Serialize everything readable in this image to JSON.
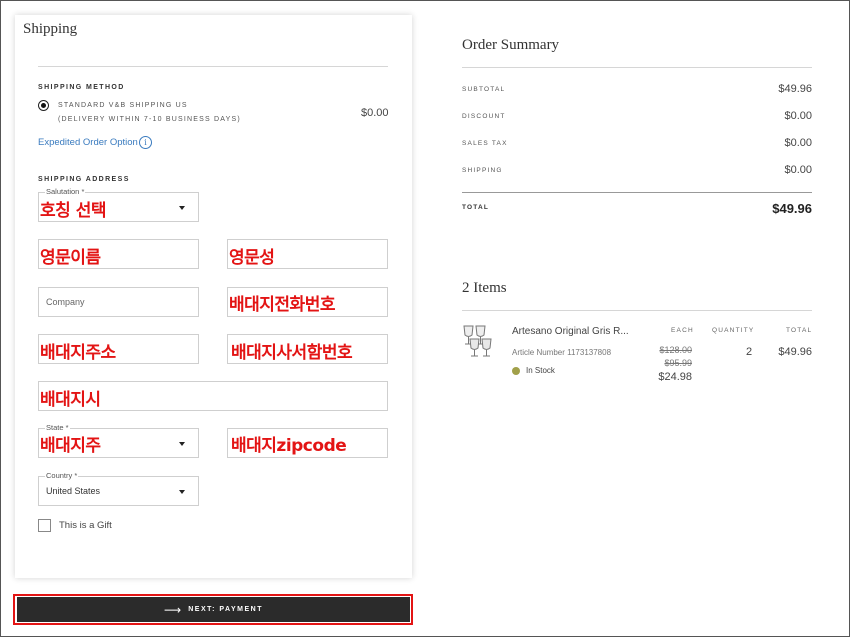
{
  "shipping": {
    "title": "Shipping",
    "method_heading": "SHIPPING METHOD",
    "method_name": "STANDARD V&B SHIPPING US",
    "method_delivery": "(DELIVERY WITHIN 7-10 BUSINESS DAYS)",
    "method_price": "$0.00",
    "expedited_link": "Expedited Order Option",
    "address_heading": "SHIPPING ADDRESS",
    "salutation_label": "Salutation *",
    "company_placeholder": "Company",
    "state_label": "State *",
    "country_label": "Country *",
    "country_value": "United States",
    "gift_label": "This is a Gift"
  },
  "annotations": {
    "salutation": "호칭 선택",
    "first_name": "영문이름",
    "last_name": "영문성",
    "phone": "배대지전화번호",
    "address": "배대지주소",
    "suite": "배대지사서함번호",
    "city": "배대지시",
    "state": "배대지주",
    "zip": "배대지zipcode"
  },
  "next_button": {
    "label": "NEXT: PAYMENT",
    "arrow": "⟶"
  },
  "summary": {
    "title": "Order Summary",
    "rows": [
      {
        "label": "SUBTOTAL",
        "value": "$49.96"
      },
      {
        "label": "DISCOUNT",
        "value": "$0.00"
      },
      {
        "label": "SALES TAX",
        "value": "$0.00"
      },
      {
        "label": "SHIPPING",
        "value": "$0.00"
      }
    ],
    "total_label": "TOTAL",
    "total_value": "$49.96"
  },
  "items": {
    "title": "2 Items",
    "headers": {
      "each": "EACH",
      "quantity": "QUANTITY",
      "total": "TOTAL"
    },
    "product": {
      "name": "Artesano Original Gris R...",
      "article": "Article Number 1173137808",
      "stock": "In Stock",
      "price_old_1": "$128.00",
      "price_old_2": "$95.99",
      "price_each": "$24.98",
      "quantity": "2",
      "total": "$49.96"
    }
  },
  "colors": {
    "annotation_red": "#e31414",
    "link_blue": "#3a7bbf",
    "button_dark": "#2b2b2b",
    "stock_dot": "#a1a04a"
  }
}
